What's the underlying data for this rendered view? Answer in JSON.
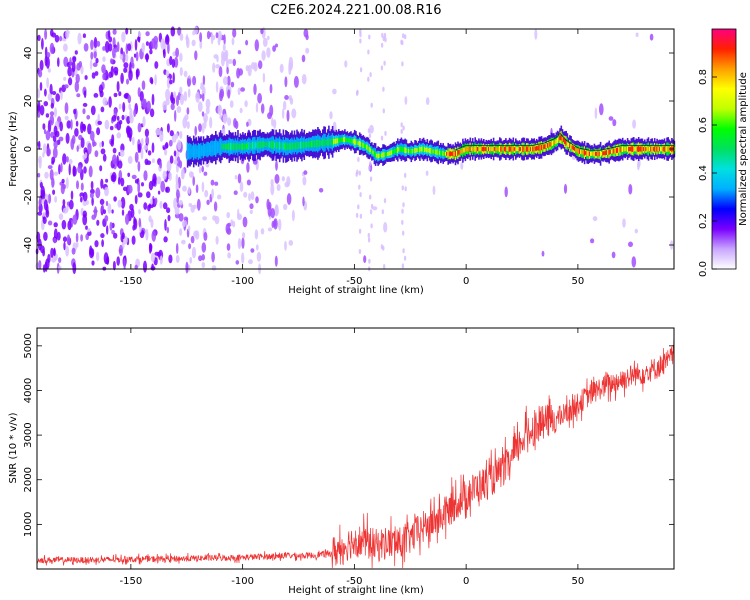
{
  "title": "C2E6.2024.221.00.08.R16",
  "chart_data": [
    {
      "type": "heatmap",
      "xlabel": "Height of straight line (km)",
      "ylabel": "Frequency (Hz)",
      "xlim": [
        -192,
        93
      ],
      "ylim": [
        -50,
        50
      ],
      "xticks": [
        -150,
        -100,
        -50,
        0,
        50
      ],
      "yticks": [
        -40,
        -20,
        0,
        20,
        40
      ],
      "colorbar": {
        "label": "Normalized spectral amplitude",
        "range": [
          0,
          1
        ],
        "ticks": [
          0.0,
          0.2,
          0.4,
          0.6,
          0.8
        ],
        "colors": [
          "#ffffff",
          "#c9a6ff",
          "#7a00ff",
          "#0000ff",
          "#00b0ff",
          "#00e0e0",
          "#00e060",
          "#00ff00",
          "#c0ff00",
          "#ffff00",
          "#ffa000",
          "#ff2000",
          "#ff0080"
        ]
      },
      "ridge": {
        "x": [
          -120,
          -110,
          -100,
          -90,
          -80,
          -70,
          -60,
          -55,
          -50,
          -45,
          -40,
          -35,
          -30,
          -25,
          -20,
          -15,
          -10,
          -5,
          0,
          10,
          20,
          30,
          35,
          40,
          42,
          45,
          50,
          55,
          60,
          70,
          80,
          93
        ],
        "y": [
          -1,
          1,
          1,
          2,
          1,
          2,
          3,
          4,
          3,
          1,
          -3,
          -2,
          0,
          -1,
          0,
          -1,
          -2,
          -2,
          0,
          0,
          0,
          0,
          1,
          3,
          5,
          2,
          -1,
          -2,
          -2,
          0,
          0,
          0
        ]
      }
    },
    {
      "type": "line",
      "xlabel": "Height of straight line (km)",
      "ylabel": "SNR (10 * v/v)",
      "xlim": [
        -192,
        93
      ],
      "ylim": [
        0,
        5400
      ],
      "xticks": [
        -150,
        -100,
        -50,
        0,
        50
      ],
      "yticks": [
        1000,
        2000,
        3000,
        4000,
        5000
      ],
      "series": [
        {
          "color": "#ee3333",
          "x": [
            -192,
            -170,
            -150,
            -130,
            -110,
            -100,
            -90,
            -80,
            -70,
            -60,
            -55,
            -50,
            -45,
            -40,
            -35,
            -30,
            -25,
            -20,
            -15,
            -10,
            -5,
            0,
            5,
            10,
            15,
            20,
            25,
            30,
            35,
            40,
            45,
            50,
            55,
            60,
            65,
            70,
            75,
            80,
            85,
            90,
            93
          ],
          "y": [
            200,
            200,
            220,
            230,
            250,
            260,
            280,
            300,
            300,
            350,
            500,
            650,
            600,
            520,
            600,
            550,
            700,
            900,
            1050,
            1200,
            1450,
            1650,
            1850,
            1950,
            2150,
            2400,
            2900,
            3150,
            3300,
            3350,
            3500,
            3700,
            3900,
            4050,
            4150,
            4250,
            4350,
            4400,
            4500,
            4650,
            4800
          ]
        }
      ]
    }
  ]
}
